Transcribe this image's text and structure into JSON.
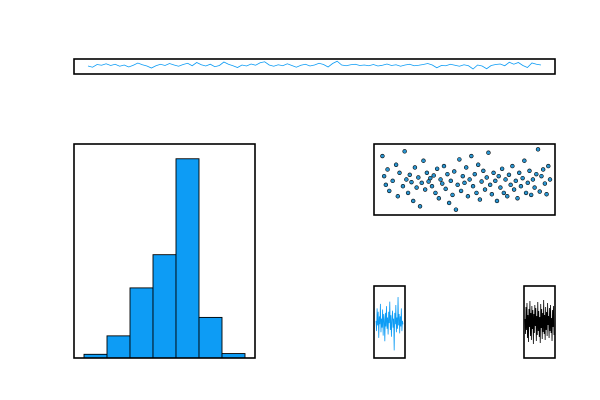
{
  "colors": {
    "accent": "#0d9cf5",
    "scatter_fill": "#2a94cf",
    "dark_series": "#000000",
    "frame": "#000000"
  },
  "chart_data": [
    {
      "type": "line",
      "xlim": [
        0,
        100
      ],
      "ylim": [
        -3,
        3
      ],
      "grid": false,
      "series": [
        {
          "values": [
            0.2,
            -0.3,
            0.8,
            0.5,
            1.1,
            0.4,
            0.9,
            0.1,
            0.6,
            -0.2,
            0.5,
            1.4,
            0.7,
            0.2,
            -0.6,
            0.3,
            0.9,
            0.4,
            1.2,
            0.6,
            0.1,
            0.8,
            1.3,
            0.3,
            1.6,
            0.7,
            0.2,
            0.9,
            -0.1,
            0.4,
            1.8,
            0.9,
            0.3,
            -0.4,
            0.6,
            0.2,
            1.0,
            0.5,
            1.5,
            1.9,
            0.6,
            0.1,
            0.7,
            0.3,
            1.1,
            0.4,
            -0.3,
            0.5,
            0.9,
            0.2,
            0.6,
            1.3,
            0.8,
            -0.2,
            1.2,
            2.1,
            0.6,
            0.3,
            0.7,
            0.9,
            0.4,
            0.6,
            0.3,
            0.8,
            0.2,
            0.5,
            1.0,
            0.4,
            0.7,
            0.1,
            0.6,
            0.9,
            0.3,
            0.5,
            0.8,
            1.2,
            0.6,
            -0.5,
            0.4,
            0.3,
            0.9,
            0.5,
            0.1,
            0.7,
            0.3,
            -1.0,
            0.6,
            0.2,
            -0.9,
            0.4,
            0.8,
            1.0,
            0.3,
            1.7,
            0.9,
            1.6,
            0.4,
            -0.4,
            1.4,
            0.9,
            0.6
          ]
        }
      ]
    },
    {
      "type": "bar",
      "xlim": [
        0,
        8
      ],
      "ylim": [
        0,
        290
      ],
      "grid": false,
      "values": [
        5,
        30,
        95,
        140,
        270,
        55,
        6
      ]
    },
    {
      "type": "scatter",
      "xlim": [
        0,
        100
      ],
      "ylim": [
        0,
        1
      ],
      "grid": false,
      "series": [
        {
          "points": [
            [
              2,
              0.85
            ],
            [
              3,
              0.55
            ],
            [
              4,
              0.42
            ],
            [
              5,
              0.65
            ],
            [
              6,
              0.33
            ],
            [
              8,
              0.48
            ],
            [
              10,
              0.72
            ],
            [
              11,
              0.25
            ],
            [
              12,
              0.6
            ],
            [
              14,
              0.4
            ],
            [
              15,
              0.92
            ],
            [
              16,
              0.5
            ],
            [
              17,
              0.3
            ],
            [
              18,
              0.57
            ],
            [
              19,
              0.46
            ],
            [
              20,
              0.18
            ],
            [
              21,
              0.68
            ],
            [
              22,
              0.38
            ],
            [
              23,
              0.53
            ],
            [
              24,
              0.1
            ],
            [
              25,
              0.45
            ],
            [
              26,
              0.78
            ],
            [
              27,
              0.35
            ],
            [
              28,
              0.6
            ],
            [
              29,
              0.47
            ],
            [
              30,
              0.52
            ],
            [
              31,
              0.4
            ],
            [
              32,
              0.56
            ],
            [
              33,
              0.3
            ],
            [
              34,
              0.66
            ],
            [
              35,
              0.22
            ],
            [
              36,
              0.5
            ],
            [
              37,
              0.44
            ],
            [
              38,
              0.7
            ],
            [
              39,
              0.36
            ],
            [
              40,
              0.58
            ],
            [
              41,
              0.15
            ],
            [
              42,
              0.48
            ],
            [
              43,
              0.27
            ],
            [
              44,
              0.62
            ],
            [
              45,
              0.05
            ],
            [
              46,
              0.42
            ],
            [
              47,
              0.8
            ],
            [
              48,
              0.33
            ],
            [
              49,
              0.55
            ],
            [
              50,
              0.45
            ],
            [
              51,
              0.68
            ],
            [
              52,
              0.25
            ],
            [
              53,
              0.5
            ],
            [
              54,
              0.85
            ],
            [
              55,
              0.4
            ],
            [
              56,
              0.58
            ],
            [
              57,
              0.3
            ],
            [
              58,
              0.72
            ],
            [
              59,
              0.2
            ],
            [
              60,
              0.47
            ],
            [
              61,
              0.63
            ],
            [
              62,
              0.35
            ],
            [
              63,
              0.53
            ],
            [
              64,
              0.9
            ],
            [
              65,
              0.42
            ],
            [
              66,
              0.28
            ],
            [
              67,
              0.6
            ],
            [
              68,
              0.48
            ],
            [
              69,
              0.18
            ],
            [
              70,
              0.55
            ],
            [
              71,
              0.38
            ],
            [
              72,
              0.66
            ],
            [
              73,
              0.3
            ],
            [
              74,
              0.5
            ],
            [
              75,
              0.25
            ],
            [
              76,
              0.57
            ],
            [
              77,
              0.42
            ],
            [
              78,
              0.7
            ],
            [
              79,
              0.35
            ],
            [
              80,
              0.48
            ],
            [
              81,
              0.22
            ],
            [
              82,
              0.6
            ],
            [
              83,
              0.4
            ],
            [
              84,
              0.52
            ],
            [
              85,
              0.78
            ],
            [
              86,
              0.3
            ],
            [
              87,
              0.45
            ],
            [
              88,
              0.63
            ],
            [
              89,
              0.27
            ],
            [
              90,
              0.5
            ],
            [
              91,
              0.38
            ],
            [
              92,
              0.58
            ],
            [
              93,
              0.95
            ],
            [
              94,
              0.32
            ],
            [
              95,
              0.55
            ],
            [
              96,
              0.65
            ],
            [
              97,
              0.44
            ],
            [
              98,
              0.28
            ],
            [
              99,
              0.7
            ],
            [
              100,
              0.5
            ]
          ]
        }
      ]
    },
    {
      "type": "line",
      "ylim": [
        -3,
        3
      ],
      "grid": false,
      "series": [
        {
          "values": [
            0.1,
            -0.8,
            1.2,
            -0.3,
            0.9,
            -1.4,
            0.5,
            -0.2,
            1.6,
            -0.9,
            0.3,
            -0.5,
            1.1,
            -1.2,
            0.7,
            0.2,
            -1.7,
            0.8,
            -0.4,
            1.4,
            -0.6,
            0.4,
            -1.1,
            0.9,
            -0.1,
            1.8,
            -0.7,
            0.6,
            -1.3,
            0.2,
            1.0,
            -0.5,
            0.3,
            -2.5,
            0.8,
            -0.2,
            1.5,
            -0.9,
            0.4,
            -0.6,
            2.2,
            -0.3,
            0.7,
            -1.0,
            0.5,
            -0.4,
            1.2,
            -0.8,
            0.1,
            -0.2
          ]
        }
      ]
    },
    {
      "type": "line",
      "ylim": [
        -3,
        3
      ],
      "grid": false,
      "series": [
        {
          "values": [
            0.3,
            -1.2,
            1.5,
            -0.8,
            1.9,
            -1.6,
            0.7,
            -2.0,
            1.3,
            -0.5,
            2.1,
            -1.4,
            0.9,
            -1.8,
            1.6,
            -0.7,
            1.2,
            -2.2,
            0.8,
            -1.1,
            1.7,
            -0.4,
            1.4,
            -1.9,
            0.6,
            -1.3,
            2.0,
            -0.9,
            1.1,
            -1.5,
            0.5,
            -2.1,
            1.8,
            -0.6,
            1.3,
            -1.7,
            0.9,
            -1.0,
            2.2,
            -1.2,
            0.7,
            -1.8,
            1.5,
            -0.8,
            1.0,
            -1.4,
            1.9,
            -0.3,
            0.6,
            -1.6,
            1.4,
            -0.9,
            1.7,
            -1.1,
            0.4,
            -1.9,
            1.2,
            -0.5,
            1.6,
            -1.3
          ]
        }
      ]
    }
  ]
}
